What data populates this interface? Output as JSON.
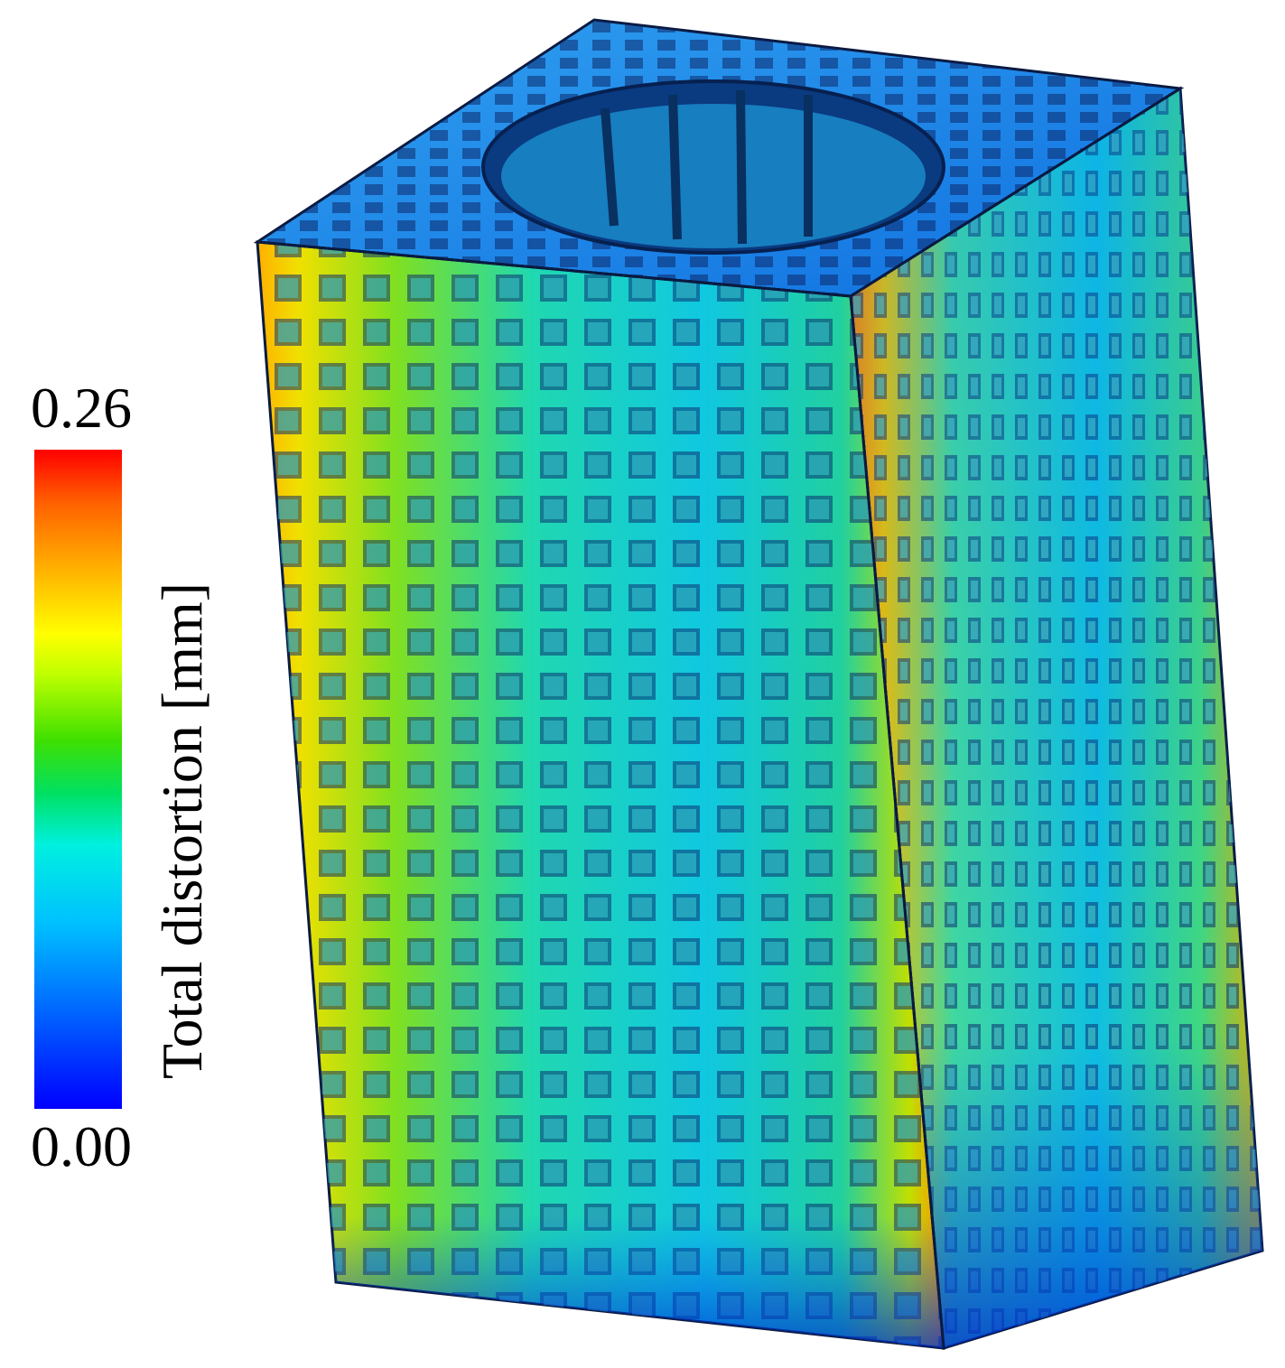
{
  "legend": {
    "max_label": "0.26",
    "min_label": "0.00",
    "title": "Total distortion [mm]",
    "colormap": [
      "#0000ff",
      "#00a0ff",
      "#00ffff",
      "#00e040",
      "#c0ff00",
      "#ffff00",
      "#ffa000",
      "#ff0000"
    ]
  }
}
